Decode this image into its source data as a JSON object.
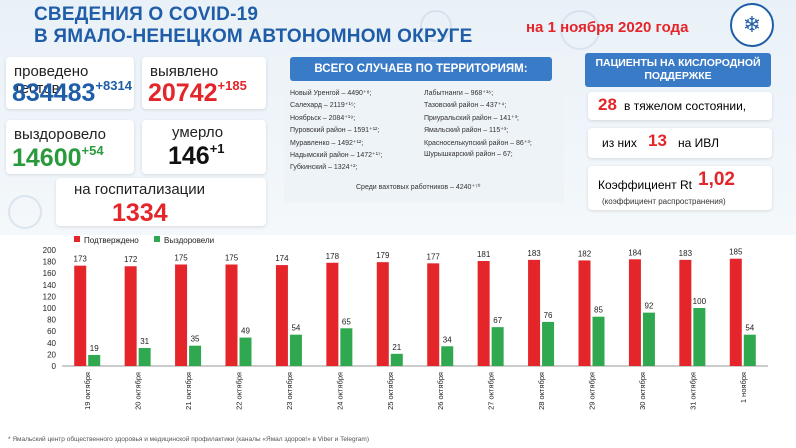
{
  "header": {
    "title_line1": "СВЕДЕНИЯ О COVID-19",
    "title_line2": "В ЯМАЛО-НЕНЕЦКОМ АВТОНОМНОМ ОКРУГЕ",
    "date": "на 1 ноября 2020 года"
  },
  "stats": {
    "tests_label": "проведено тестов",
    "tests_value": "834483",
    "tests_delta": "+8314",
    "detected_label": "выявлено",
    "detected_value": "20742",
    "detected_delta": "+185",
    "recovered_label": "выздоровело",
    "recovered_value": "14600",
    "recovered_delta": "+54",
    "died_label": "умерло",
    "died_value": "146",
    "died_delta": "+1",
    "hosp_label": "на госпитализации",
    "hosp_value": "1334"
  },
  "territories": {
    "heading": "ВСЕГО СЛУЧАЕВ ПО ТЕРРИТОРИЯМ:",
    "left": [
      "Новый Уренгой – 4490⁺⁸;",
      "Салехард – 2119⁺¹⁵;",
      "Ноябрьск – 2084⁺¹⁹;",
      "Пуровский район – 1591⁺¹²;",
      "Муравленко – 1492⁺¹²;",
      "Надымский район – 1472⁺¹⁷;",
      "Губкинский – 1324⁺²;"
    ],
    "right": [
      "Лабытнанги – 968⁺¹⁶;",
      "Тазовский район – 437⁺⁴;",
      "Приуральский район – 141⁺³;",
      "Ямальский район – 115⁺³;",
      "Красноселькупский район – 86⁺³;",
      "Шурышкарский район – 67;"
    ],
    "shift": "Среди вахтовых работников – 4240⁺⁷⁰"
  },
  "oxygen": {
    "heading": "ПАЦИЕНТЫ НА КИСЛОРОДНОЙ ПОДДЕРЖКЕ",
    "severe_value": "28",
    "severe_text": "в тяжелом состоянии,",
    "ivl_prefix": "из них",
    "ivl_value": "13",
    "ivl_suffix": "на ИВЛ",
    "rt_label": "Коэффициент Rt",
    "rt_value": "1,02",
    "rt_note": "(коэффициент распространения)"
  },
  "footer": "* Ямальский центр общественного здоровья и медицинской профилактики (каналы «Ямал здоров!» в Viber и Telegram)",
  "colors": {
    "red": "#e4252a",
    "green": "#2fa84f",
    "blue": "#1f5da8"
  },
  "chart_data": {
    "type": "bar",
    "categories": [
      "19 октября",
      "20 октября",
      "21 октября",
      "22 октября",
      "23 октября",
      "24 октября",
      "25 октября",
      "26 октября",
      "27 октября",
      "28 октября",
      "29 октября",
      "30 октября",
      "31 октября",
      "1 ноября"
    ],
    "series": [
      {
        "name": "Подтверждено",
        "color": "#e4252a",
        "values": [
          173,
          172,
          175,
          175,
          174,
          178,
          179,
          177,
          181,
          183,
          182,
          184,
          183,
          185
        ]
      },
      {
        "name": "Выздоровели",
        "color": "#2fa84f",
        "values": [
          19,
          31,
          35,
          49,
          54,
          65,
          21,
          34,
          67,
          76,
          85,
          92,
          100,
          54
        ]
      }
    ],
    "yticks": [
      "0",
      "20",
      "40",
      "60",
      "80",
      "100",
      "120",
      "140",
      "160",
      "180",
      "200"
    ],
    "ylim": [
      0,
      200
    ],
    "legend_position": "top-left",
    "grid": false
  }
}
